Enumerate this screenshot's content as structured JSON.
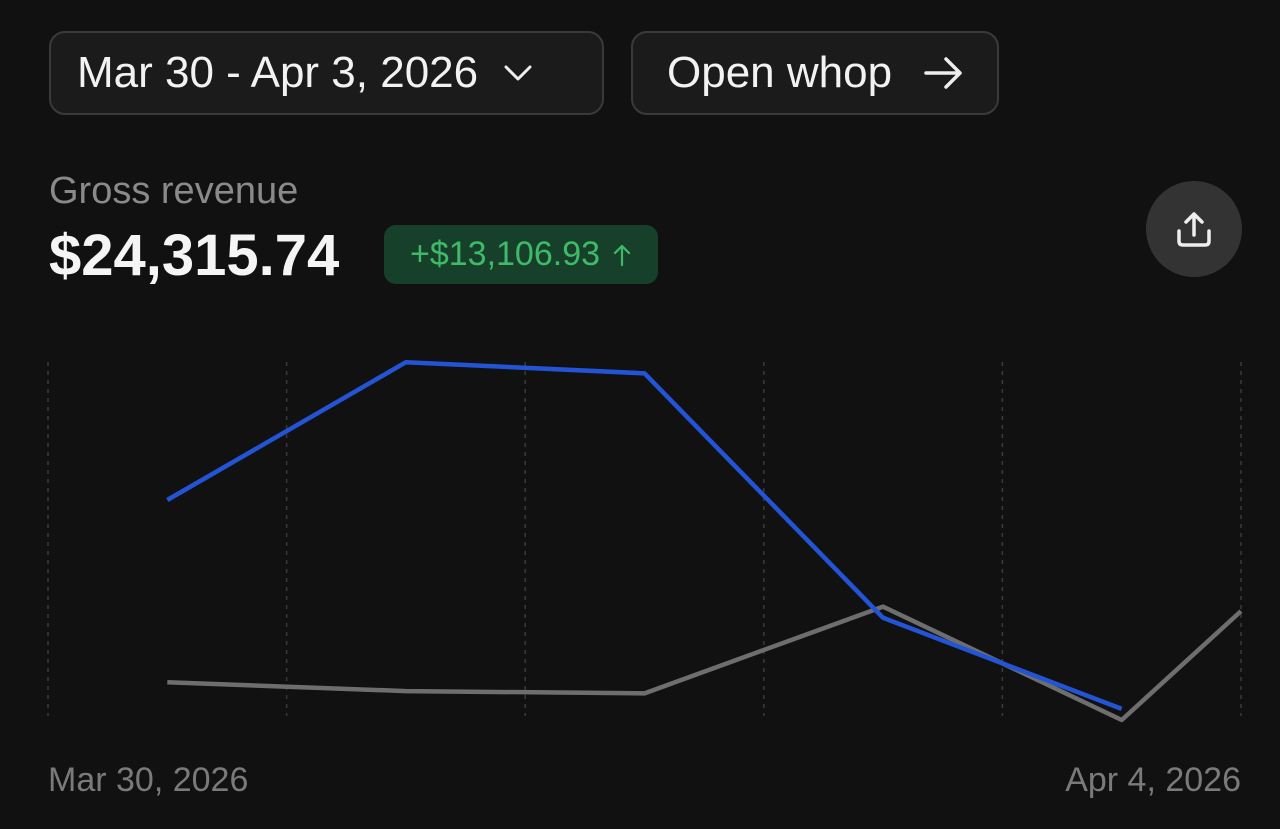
{
  "header": {
    "date_range": "Mar 30 - Apr 3, 2026",
    "open_button": "Open whop"
  },
  "metric": {
    "label": "Gross revenue",
    "value": "$24,315.74",
    "change": "+$13,106.93"
  },
  "chart_data": {
    "type": "line",
    "x": [
      0.5,
      1.5,
      2.5,
      3.5,
      4.5,
      5
    ],
    "xlim": [
      0,
      5
    ],
    "xticks": [
      {
        "value": 0,
        "label": "Mar 30, 2026"
      },
      {
        "value": 1,
        "label": null
      },
      {
        "value": 2,
        "label": null
      },
      {
        "value": 3,
        "label": null
      },
      {
        "value": 4,
        "label": null
      },
      {
        "value": 5,
        "label": "Apr 4, 2026"
      }
    ],
    "ylim": [
      0,
      9000
    ],
    "series": [
      {
        "color": "#2454d6",
        "values": [
          5400,
          8500,
          8250,
          2750,
          700,
          null
        ]
      },
      {
        "color": "#6e6e6e",
        "values": [
          1300,
          1100,
          1050,
          3000,
          450,
          2900
        ]
      }
    ]
  }
}
